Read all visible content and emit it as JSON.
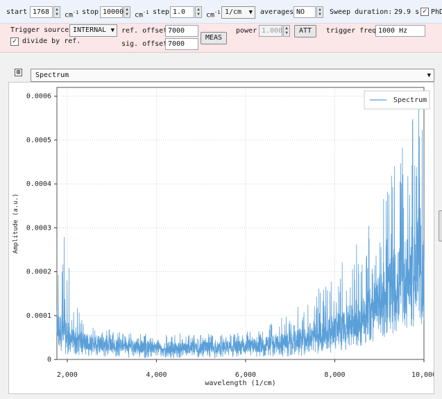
{
  "toolbar": {
    "start_label": "start",
    "start_value": "1768",
    "start_unit": "cm",
    "stop_label": "stop",
    "stop_value": "10000",
    "stop_unit": "cm",
    "step_label": "step",
    "step_value": "1.0",
    "step_unit": "cm",
    "unit_sup": "-1",
    "unit_select": "1/cm",
    "averages_label": "averages",
    "averages_value": "NO",
    "sweep_duration_label": "Sweep duration:",
    "sweep_duration_value": "29.9 s",
    "phd_label": "PhD",
    "phd_checked": "✓"
  },
  "trigger": {
    "source_label": "Trigger source",
    "source_value": "INTERNAL",
    "divide_label": "divide by ref.",
    "divide_checked": "✓",
    "ref_offset_label": "ref. offset",
    "ref_offset_value": "7000",
    "sig_offset_label": "sig. offset",
    "sig_offset_value": "7000",
    "meas_button": "MEAS",
    "power_label": "power",
    "power_value": "1.000",
    "att_button": "ATT",
    "freq_label": "trigger freq",
    "freq_value": "1000 Hz"
  },
  "plot_panel": {
    "expander": "⊞",
    "selected_plot": "Spectrum"
  },
  "chart_data": {
    "type": "line",
    "title": "",
    "xlabel": "wavelength (1/cm)",
    "ylabel": "Amplitude (a.u.)",
    "xlim": [
      1768,
      10000
    ],
    "ylim": [
      0,
      0.00062
    ],
    "xticks": [
      2000,
      4000,
      6000,
      8000,
      10000
    ],
    "xtick_labels": [
      "2,000",
      "4,000",
      "6,000",
      "8,000",
      "10,000"
    ],
    "yticks": [
      0,
      0.0001,
      0.0002,
      0.0003,
      0.0004,
      0.0005,
      0.0006
    ],
    "ytick_labels": [
      "0",
      "0.0001",
      "0.0002",
      "0.0003",
      "0.0004",
      "0.0005",
      "0.0006"
    ],
    "grid": true,
    "legend": "top-right",
    "series": [
      {
        "name": "Spectrum",
        "color": "#5a9fd8",
        "x": [
          1768,
          1900,
          2000,
          2100,
          2300,
          2600,
          3000,
          3500,
          4000,
          4500,
          5000,
          5500,
          6000,
          6500,
          7000,
          7300,
          7600,
          7900,
          8200,
          8500,
          8800,
          9100,
          9400,
          9700,
          9850,
          10000
        ],
        "upper": [
          0.00033,
          0.0003,
          0.00028,
          0.00015,
          0.0001,
          8e-05,
          7e-05,
          6e-05,
          6e-05,
          6e-05,
          6e-05,
          6e-05,
          6.5e-05,
          8e-05,
          0.00011,
          0.00013,
          0.00016,
          0.00019,
          0.00023,
          0.00028,
          0.00033,
          0.0004,
          0.00046,
          0.00052,
          0.00062,
          0.00051
        ],
        "lower": [
          8e-06,
          1.2e-05,
          1.2e-05,
          1e-05,
          1e-05,
          6e-06,
          5e-06,
          3e-06,
          3e-06,
          3e-06,
          3e-06,
          3e-06,
          3e-06,
          4e-06,
          6e-06,
          8e-06,
          1e-05,
          1.5e-05,
          2e-05,
          2.8e-05,
          3.5e-05,
          5e-05,
          6e-05,
          7e-05,
          8e-05,
          5e-05
        ],
        "baseline": [
          8e-05,
          7e-05,
          6e-05,
          5e-05,
          4.5e-05,
          4e-05,
          3.5e-05,
          3.2e-05,
          3e-05,
          2.8e-05,
          2.8e-05,
          3e-05,
          3.2e-05,
          3.8e-05,
          4.5e-05,
          5e-05,
          6e-05,
          7e-05,
          8e-05,
          0.0001,
          0.00012,
          0.00015,
          0.00018,
          0.00021,
          0.00025,
          0.0002
        ]
      }
    ]
  }
}
